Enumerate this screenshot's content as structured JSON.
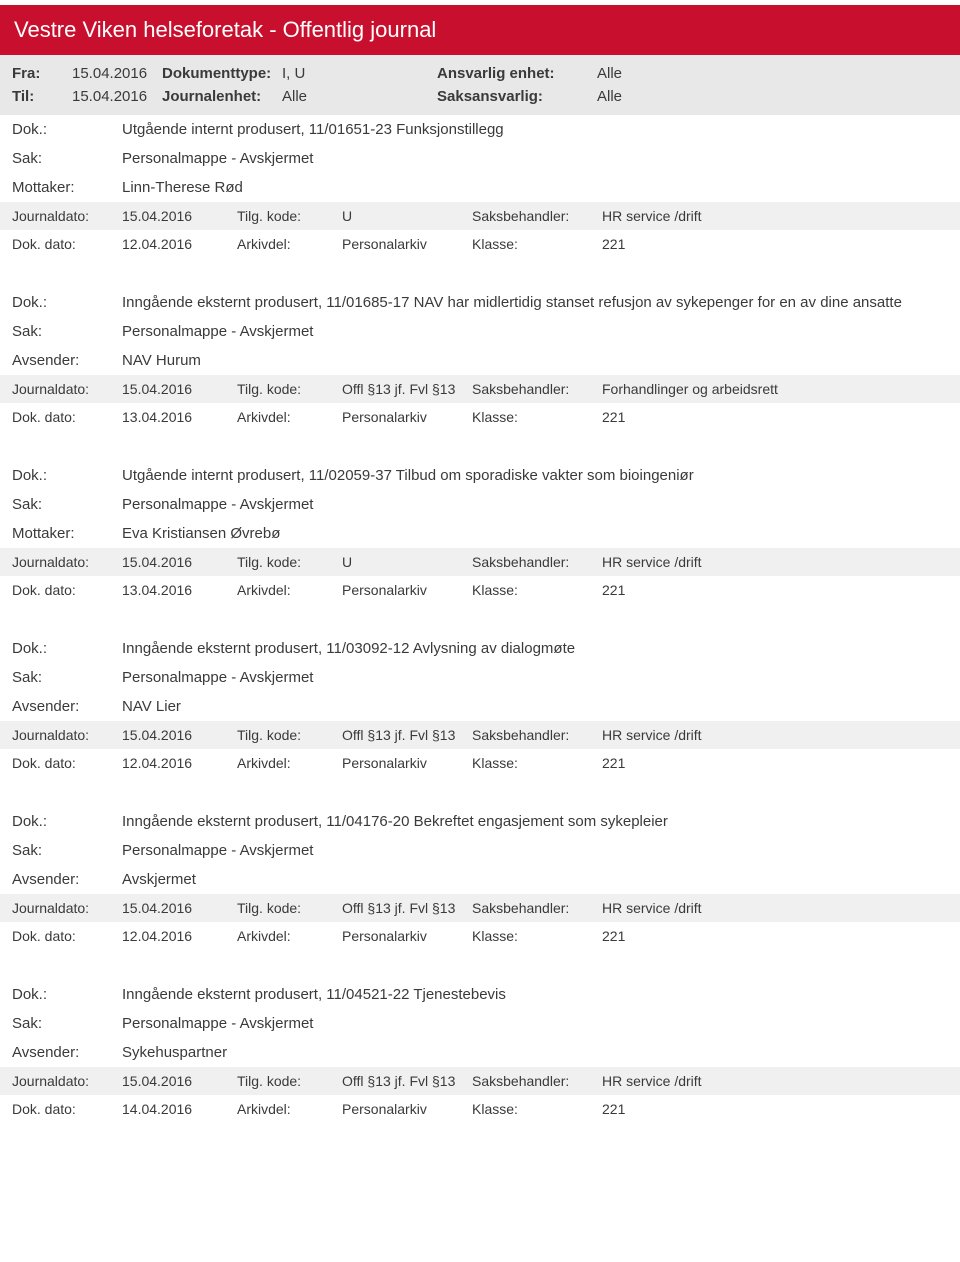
{
  "header": {
    "title": "Vestre Viken helseforetak - Offentlig journal",
    "filters": {
      "fra_label": "Fra:",
      "fra_value": "15.04.2016",
      "til_label": "Til:",
      "til_value": "15.04.2016",
      "doktype_label": "Dokumenttype:",
      "doktype_value": "I, U",
      "journalenhet_label": "Journalenhet:",
      "journalenhet_value": "Alle",
      "ansvarlig_label": "Ansvarlig enhet:",
      "ansvarlig_value": "Alle",
      "saksansvarlig_label": "Saksansvarlig:",
      "saksansvarlig_value": "Alle"
    }
  },
  "labels": {
    "dok": "Dok.:",
    "sak": "Sak:",
    "mottaker": "Mottaker:",
    "avsender": "Avsender:",
    "journaldato": "Journaldato:",
    "dokdato": "Dok. dato:",
    "tilgkode": "Tilg. kode:",
    "arkivdel": "Arkivdel:",
    "saksbehandler": "Saksbehandler:",
    "klasse": "Klasse:"
  },
  "entries": [
    {
      "dok": "Utgående internt produsert, 11/01651-23 Funksjonstillegg",
      "sak": "Personalmappe - Avskjermet",
      "party_label": "Mottaker:",
      "party_value": "Linn-Therese Rød",
      "journaldato": "15.04.2016",
      "tilgkode": "U",
      "saksbehandler": "HR service /drift",
      "dokdato": "12.04.2016",
      "arkivdel": "Personalarkiv",
      "klasse": "221"
    },
    {
      "dok": "Inngående eksternt produsert, 11/01685-17 NAV har midlertidig stanset refusjon av sykepenger for en av dine ansatte",
      "sak": "Personalmappe - Avskjermet",
      "party_label": "Avsender:",
      "party_value": "NAV Hurum",
      "journaldato": "15.04.2016",
      "tilgkode": "Offl §13 jf. Fvl §13",
      "saksbehandler": "Forhandlinger og arbeidsrett",
      "dokdato": "13.04.2016",
      "arkivdel": "Personalarkiv",
      "klasse": "221"
    },
    {
      "dok": "Utgående internt produsert, 11/02059-37 Tilbud om sporadiske vakter som bioingeniør",
      "sak": "Personalmappe - Avskjermet",
      "party_label": "Mottaker:",
      "party_value": "Eva Kristiansen Øvrebø",
      "journaldato": "15.04.2016",
      "tilgkode": "U",
      "saksbehandler": "HR service /drift",
      "dokdato": "13.04.2016",
      "arkivdel": "Personalarkiv",
      "klasse": "221"
    },
    {
      "dok": "Inngående eksternt produsert, 11/03092-12 Avlysning av dialogmøte",
      "sak": "Personalmappe - Avskjermet",
      "party_label": "Avsender:",
      "party_value": "NAV Lier",
      "journaldato": "15.04.2016",
      "tilgkode": "Offl §13 jf. Fvl §13",
      "saksbehandler": "HR service /drift",
      "dokdato": "12.04.2016",
      "arkivdel": "Personalarkiv",
      "klasse": "221"
    },
    {
      "dok": "Inngående eksternt produsert, 11/04176-20 Bekreftet engasjement som sykepleier",
      "sak": "Personalmappe - Avskjermet",
      "party_label": "Avsender:",
      "party_value": "Avskjermet",
      "journaldato": "15.04.2016",
      "tilgkode": "Offl §13 jf. Fvl §13",
      "saksbehandler": "HR service /drift",
      "dokdato": "12.04.2016",
      "arkivdel": "Personalarkiv",
      "klasse": "221"
    },
    {
      "dok": "Inngående eksternt produsert, 11/04521-22 Tjenestebevis",
      "sak": "Personalmappe - Avskjermet",
      "party_label": "Avsender:",
      "party_value": "Sykehuspartner",
      "journaldato": "15.04.2016",
      "tilgkode": "Offl §13 jf. Fvl §13",
      "saksbehandler": "HR service /drift",
      "dokdato": "14.04.2016",
      "arkivdel": "Personalarkiv",
      "klasse": "221"
    }
  ]
}
